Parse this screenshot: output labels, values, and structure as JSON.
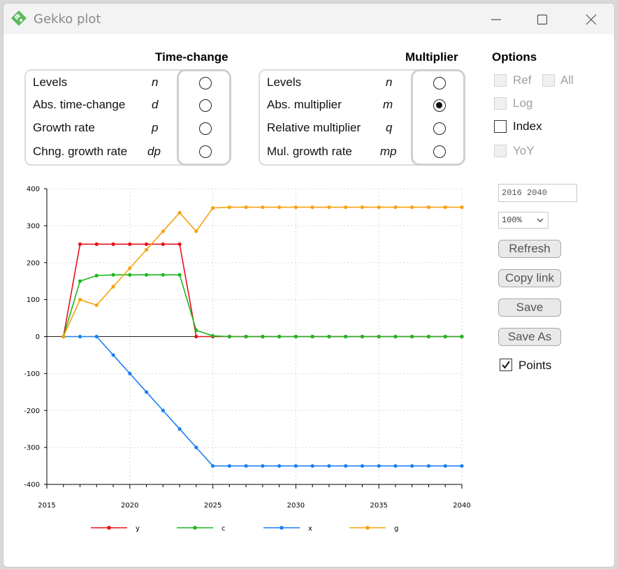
{
  "window": {
    "title": "Gekko plot",
    "icon": "gekko-logo-icon"
  },
  "time_change": {
    "title": "Time-change",
    "rows": [
      {
        "label": "Levels",
        "code": "n",
        "checked": false
      },
      {
        "label": "Abs. time-change",
        "code": "d",
        "checked": false
      },
      {
        "label": "Growth rate",
        "code": "p",
        "checked": false
      },
      {
        "label": "Chng. growth rate",
        "code": "dp",
        "checked": false
      }
    ]
  },
  "multiplier": {
    "title": "Multiplier",
    "rows": [
      {
        "label": "Levels",
        "code": "n",
        "checked": false
      },
      {
        "label": "Abs. multiplier",
        "code": "m",
        "checked": true
      },
      {
        "label": "Relative multiplier",
        "code": "q",
        "checked": false
      },
      {
        "label": "Mul. growth rate",
        "code": "mp",
        "checked": false
      }
    ]
  },
  "options": {
    "title": "Options",
    "ref": "Ref",
    "all": "All",
    "log": "Log",
    "index": "Index",
    "yoy": "YoY",
    "period": "2016 2040",
    "zoom": "100%",
    "refresh": "Refresh",
    "copy_link": "Copy link",
    "save": "Save",
    "save_as": "Save As",
    "points": "Points"
  },
  "chart_data": {
    "type": "line",
    "title": "",
    "xlabel": "",
    "ylabel": "",
    "xlim": [
      2015,
      2040
    ],
    "ylim": [
      -400,
      400
    ],
    "x_ticks": [
      2015,
      2020,
      2025,
      2030,
      2035,
      2040
    ],
    "y_ticks": [
      400,
      300,
      200,
      100,
      0,
      -100,
      -200,
      -300,
      -400
    ],
    "grid": true,
    "legend": "bottom",
    "x": [
      2016,
      2017,
      2018,
      2019,
      2020,
      2021,
      2022,
      2023,
      2024,
      2025,
      2026,
      2027,
      2028,
      2029,
      2030,
      2031,
      2032,
      2033,
      2034,
      2035,
      2036,
      2037,
      2038,
      2039,
      2040
    ],
    "series": [
      {
        "name": "y",
        "color": "#e8101a",
        "values": [
          0,
          250,
          250,
          250,
          250,
          250,
          250,
          250,
          0,
          0,
          0,
          0,
          0,
          0,
          0,
          0,
          0,
          0,
          0,
          0,
          0,
          0,
          0,
          0,
          0
        ]
      },
      {
        "name": "c",
        "color": "#1cb81c",
        "values": [
          0,
          150,
          165,
          167,
          167,
          167,
          167,
          167,
          17,
          2,
          0,
          0,
          0,
          0,
          0,
          0,
          0,
          0,
          0,
          0,
          0,
          0,
          0,
          0,
          0
        ]
      },
      {
        "name": "x",
        "color": "#1a7ff0",
        "values": [
          0,
          0,
          0,
          -50,
          -100,
          -150,
          -200,
          -250,
          -300,
          -350,
          -350,
          -350,
          -350,
          -350,
          -350,
          -350,
          -350,
          -350,
          -350,
          -350,
          -350,
          -350,
          -350,
          -350,
          -350
        ]
      },
      {
        "name": "g",
        "color": "#f5a30f",
        "values": [
          0,
          100,
          85,
          135,
          185,
          235,
          285,
          335,
          285,
          348,
          350,
          350,
          350,
          350,
          350,
          350,
          350,
          350,
          350,
          350,
          350,
          350,
          350,
          350,
          350
        ]
      }
    ]
  }
}
